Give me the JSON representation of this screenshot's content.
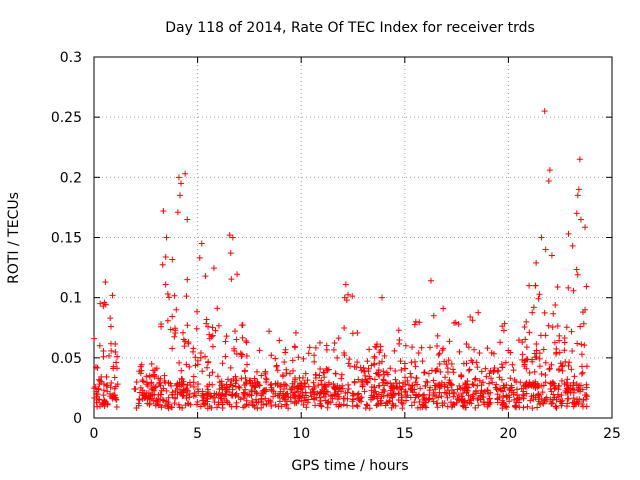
{
  "chart_data": {
    "type": "scatter",
    "title": "Day 118 of 2014, Rate Of TEC Index for receiver trds",
    "xlabel": "GPS time / hours",
    "ylabel": "ROTI / TECUs",
    "xlim": [
      0,
      25
    ],
    "ylim": [
      0,
      0.3
    ],
    "xticks": [
      0,
      5,
      10,
      15,
      20,
      25
    ],
    "yticks": [
      0,
      0.05,
      0.1,
      0.15,
      0.2,
      0.25,
      0.3
    ],
    "xtick_labels": [
      "0",
      "5",
      "10",
      "15",
      "20",
      "25"
    ],
    "ytick_labels": [
      "0",
      "0.05",
      "0.1",
      "0.15",
      "0.2",
      "0.25",
      "0.3"
    ],
    "grid": true,
    "marker": "+",
    "marker_color": "#ff0000",
    "data_gap_hours": [
      1.2,
      1.95
    ],
    "series": [
      {
        "name": "ROTI",
        "points": [
          [
            0.3,
            0.095
          ],
          [
            0.45,
            0.093
          ],
          [
            0.55,
            0.113
          ],
          [
            0.5,
            0.096
          ],
          [
            4.1,
            0.2
          ],
          [
            4.2,
            0.195
          ],
          [
            4.15,
            0.185
          ],
          [
            4.4,
            0.203
          ],
          [
            4.5,
            0.165
          ],
          [
            4.05,
            0.171
          ],
          [
            3.5,
            0.15
          ],
          [
            5.2,
            0.145
          ],
          [
            6.55,
            0.152
          ],
          [
            6.7,
            0.15
          ],
          [
            6.6,
            0.137
          ],
          [
            12.1,
            0.1
          ],
          [
            12.2,
            0.098
          ],
          [
            13.9,
            0.1
          ],
          [
            16.4,
            0.085
          ],
          [
            19.6,
            0.063
          ],
          [
            17.6,
            0.078
          ],
          [
            21.0,
            0.11
          ],
          [
            21.3,
            0.11
          ],
          [
            21.6,
            0.15
          ],
          [
            21.75,
            0.255
          ],
          [
            22.0,
            0.206
          ],
          [
            21.95,
            0.197
          ],
          [
            22.1,
            0.135
          ],
          [
            21.8,
            0.14
          ],
          [
            22.9,
            0.153
          ],
          [
            23.1,
            0.143
          ],
          [
            23.3,
            0.17
          ],
          [
            23.35,
            0.185
          ],
          [
            23.4,
            0.19
          ],
          [
            23.45,
            0.215
          ],
          [
            23.5,
            0.165
          ],
          [
            23.6,
            0.088
          ],
          [
            23.7,
            0.09
          ]
        ]
      }
    ]
  }
}
